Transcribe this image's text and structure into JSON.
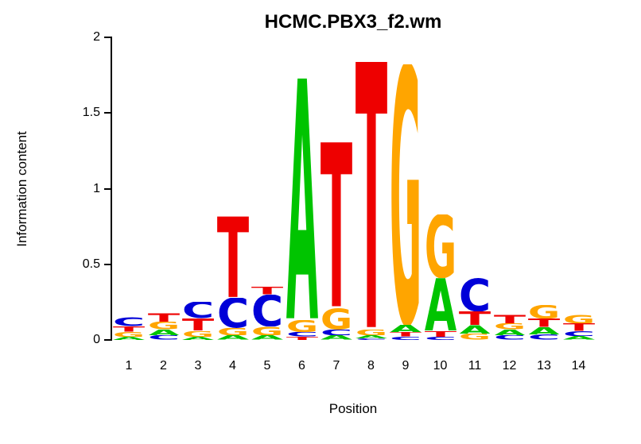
{
  "chart_data": {
    "type": "sequence_logo",
    "title": "HCMC.PBX3_f2.wm",
    "xlabel": "Position",
    "ylabel": "Information content",
    "ylim": [
      0,
      2
    ],
    "grid": false,
    "legend": "none",
    "y_ticks": [
      0,
      0.5,
      1,
      1.5,
      2
    ],
    "y_tick_labels": [
      "0",
      "0.5",
      "1",
      "1.5",
      "2"
    ],
    "x_tick_labels": [
      "1",
      "2",
      "3",
      "4",
      "5",
      "6",
      "7",
      "8",
      "9",
      "10",
      "11",
      "12",
      "13",
      "14"
    ],
    "colors": {
      "A": "#00C400",
      "C": "#0000D8",
      "G": "#FFA500",
      "T": "#EE0000"
    },
    "positions": [
      {
        "position": 1,
        "stack_bottom_to_top": [
          {
            "letter": "A",
            "bits": 0.02
          },
          {
            "letter": "G",
            "bits": 0.035
          },
          {
            "letter": "T",
            "bits": 0.035
          },
          {
            "letter": "C",
            "bits": 0.06
          }
        ]
      },
      {
        "position": 2,
        "stack_bottom_to_top": [
          {
            "letter": "C",
            "bits": 0.03
          },
          {
            "letter": "A",
            "bits": 0.04
          },
          {
            "letter": "G",
            "bits": 0.05
          },
          {
            "letter": "T",
            "bits": 0.06
          }
        ]
      },
      {
        "position": 3,
        "stack_bottom_to_top": [
          {
            "letter": "A",
            "bits": 0.02
          },
          {
            "letter": "G",
            "bits": 0.04
          },
          {
            "letter": "T",
            "bits": 0.08
          },
          {
            "letter": "C",
            "bits": 0.11
          }
        ]
      },
      {
        "position": 4,
        "stack_bottom_to_top": [
          {
            "letter": "A",
            "bits": 0.03
          },
          {
            "letter": "G",
            "bits": 0.05
          },
          {
            "letter": "C",
            "bits": 0.2
          },
          {
            "letter": "T",
            "bits": 0.54
          }
        ]
      },
      {
        "position": 5,
        "stack_bottom_to_top": [
          {
            "letter": "A",
            "bits": 0.03
          },
          {
            "letter": "G",
            "bits": 0.06
          },
          {
            "letter": "C",
            "bits": 0.21
          },
          {
            "letter": "T",
            "bits": 0.05
          }
        ]
      },
      {
        "position": 6,
        "stack_bottom_to_top": [
          {
            "letter": "T",
            "bits": 0.02
          },
          {
            "letter": "C",
            "bits": 0.03
          },
          {
            "letter": "G",
            "bits": 0.08
          },
          {
            "letter": "A",
            "bits": 1.61
          }
        ]
      },
      {
        "position": 7,
        "stack_bottom_to_top": [
          {
            "letter": "A",
            "bits": 0.03
          },
          {
            "letter": "C",
            "bits": 0.04
          },
          {
            "letter": "G",
            "bits": 0.14
          },
          {
            "letter": "T",
            "bits": 1.1
          }
        ]
      },
      {
        "position": 8,
        "stack_bottom_to_top": [
          {
            "letter": "C",
            "bits": 0.01
          },
          {
            "letter": "A",
            "bits": 0.02
          },
          {
            "letter": "G",
            "bits": 0.04
          },
          {
            "letter": "T",
            "bits": 1.78
          }
        ]
      },
      {
        "position": 9,
        "stack_bottom_to_top": [
          {
            "letter": "C",
            "bits": 0.02
          },
          {
            "letter": "T",
            "bits": 0.03
          },
          {
            "letter": "A",
            "bits": 0.05
          },
          {
            "letter": "G",
            "bits": 1.72
          }
        ]
      },
      {
        "position": 10,
        "stack_bottom_to_top": [
          {
            "letter": "C",
            "bits": 0.02
          },
          {
            "letter": "T",
            "bits": 0.04
          },
          {
            "letter": "A",
            "bits": 0.35
          },
          {
            "letter": "G",
            "bits": 0.42
          }
        ]
      },
      {
        "position": 11,
        "stack_bottom_to_top": [
          {
            "letter": "G",
            "bits": 0.04
          },
          {
            "letter": "A",
            "bits": 0.06
          },
          {
            "letter": "T",
            "bits": 0.09
          },
          {
            "letter": "C",
            "bits": 0.22
          }
        ]
      },
      {
        "position": 12,
        "stack_bottom_to_top": [
          {
            "letter": "C",
            "bits": 0.03
          },
          {
            "letter": "A",
            "bits": 0.04
          },
          {
            "letter": "G",
            "bits": 0.04
          },
          {
            "letter": "T",
            "bits": 0.06
          }
        ]
      },
      {
        "position": 13,
        "stack_bottom_to_top": [
          {
            "letter": "C",
            "bits": 0.035
          },
          {
            "letter": "A",
            "bits": 0.05
          },
          {
            "letter": "T",
            "bits": 0.055
          },
          {
            "letter": "G",
            "bits": 0.09
          }
        ]
      },
      {
        "position": 14,
        "stack_bottom_to_top": [
          {
            "letter": "A",
            "bits": 0.025
          },
          {
            "letter": "C",
            "bits": 0.035
          },
          {
            "letter": "T",
            "bits": 0.05
          },
          {
            "letter": "G",
            "bits": 0.06
          }
        ]
      }
    ]
  }
}
